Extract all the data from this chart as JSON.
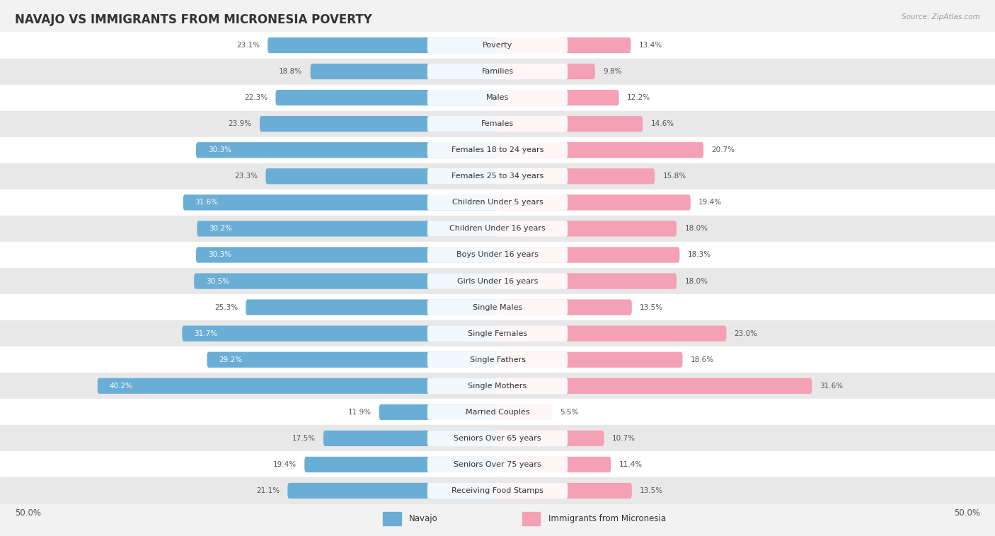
{
  "title": "NAVAJO VS IMMIGRANTS FROM MICRONESIA POVERTY",
  "source": "Source: ZipAtlas.com",
  "categories": [
    "Poverty",
    "Families",
    "Males",
    "Females",
    "Females 18 to 24 years",
    "Females 25 to 34 years",
    "Children Under 5 years",
    "Children Under 16 years",
    "Boys Under 16 years",
    "Girls Under 16 years",
    "Single Males",
    "Single Females",
    "Single Fathers",
    "Single Mothers",
    "Married Couples",
    "Seniors Over 65 years",
    "Seniors Over 75 years",
    "Receiving Food Stamps"
  ],
  "navajo_values": [
    23.1,
    18.8,
    22.3,
    23.9,
    30.3,
    23.3,
    31.6,
    30.2,
    30.3,
    30.5,
    25.3,
    31.7,
    29.2,
    40.2,
    11.9,
    17.5,
    19.4,
    21.1
  ],
  "micronesia_values": [
    13.4,
    9.8,
    12.2,
    14.6,
    20.7,
    15.8,
    19.4,
    18.0,
    18.3,
    18.0,
    13.5,
    23.0,
    18.6,
    31.6,
    5.5,
    10.7,
    11.4,
    13.5
  ],
  "navajo_color": "#6aaed6",
  "micronesia_color": "#f4a0b5",
  "navajo_label": "Navajo",
  "micronesia_label": "Immigrants from Micronesia",
  "axis_max": 50.0,
  "bg_color": "#f2f2f2",
  "row_colors": [
    "#ffffff",
    "#e8e8e8"
  ],
  "title_fontsize": 12,
  "label_fontsize": 8.0,
  "value_fontsize": 7.5
}
